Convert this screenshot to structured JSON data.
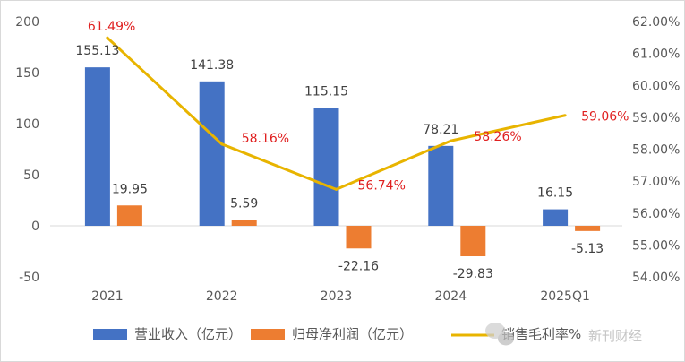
{
  "chart_data": {
    "type": "bar",
    "categories": [
      "2021",
      "2022",
      "2023",
      "2024",
      "2025Q1"
    ],
    "series": [
      {
        "name": "营业收入（亿元）",
        "kind": "bar",
        "axis": "left",
        "values": [
          155.13,
          141.38,
          115.15,
          78.21,
          16.15
        ],
        "labels": [
          "155.13",
          "141.38",
          "115.15",
          "78.21",
          "16.15"
        ],
        "color": "#4472C4"
      },
      {
        "name": "归母净利润（亿元）",
        "kind": "bar",
        "axis": "left",
        "values": [
          19.95,
          5.59,
          -22.16,
          -29.83,
          -5.13
        ],
        "labels": [
          "19.95",
          "5.59",
          "-22.16",
          "-29.83",
          "-5.13"
        ],
        "color": "#ED7D31"
      },
      {
        "name": "销售毛利率%",
        "kind": "line",
        "axis": "right",
        "values": [
          61.49,
          58.16,
          56.74,
          58.26,
          59.06
        ],
        "labels": [
          "61.49%",
          "58.16%",
          "56.74%",
          "58.26%",
          "59.06%"
        ],
        "color": "#E8B400",
        "label_color": "#E02020"
      }
    ],
    "left_axis": {
      "ylim": [
        -50,
        200
      ],
      "ticks": [
        "200",
        "150",
        "100",
        "50",
        "0",
        "-50"
      ],
      "tick_values": [
        200,
        150,
        100,
        50,
        0,
        -50
      ]
    },
    "right_axis": {
      "ylim": [
        54,
        62
      ],
      "ticks": [
        "62.00%",
        "61.00%",
        "60.00%",
        "59.00%",
        "58.00%",
        "57.00%",
        "56.00%",
        "55.00%",
        "54.00%"
      ],
      "tick_values": [
        62,
        61,
        60,
        59,
        58,
        57,
        56,
        55,
        54
      ]
    },
    "legend_position": "bottom",
    "grid": false
  },
  "watermark": {
    "text": "新刊财经",
    "icon": "wechat-icon"
  }
}
